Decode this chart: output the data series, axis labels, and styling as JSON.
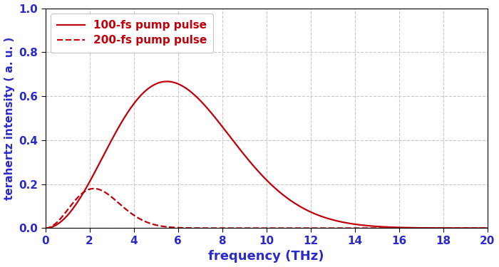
{
  "title": "",
  "xlabel": "frequency (THz)",
  "ylabel": "terahertz intensity ( a. u. )",
  "xlim": [
    0,
    20
  ],
  "ylim": [
    0,
    1
  ],
  "xticks": [
    0,
    2,
    4,
    6,
    8,
    10,
    12,
    14,
    16,
    18,
    20
  ],
  "yticks": [
    0,
    0.2,
    0.4,
    0.6,
    0.8,
    1
  ],
  "line_color": "#c0000a",
  "bg_color": "#ffffff",
  "grid_color": "#c8c8c8",
  "legend1": "100-fs pump pulse",
  "legend2": "200-fs pump pulse",
  "f0_1": 5.5,
  "f0_2": 2.2,
  "target_peak1": 0.667,
  "target_peak2": 0.18,
  "figsize": [
    7.0,
    3.75
  ],
  "dpi": 100
}
